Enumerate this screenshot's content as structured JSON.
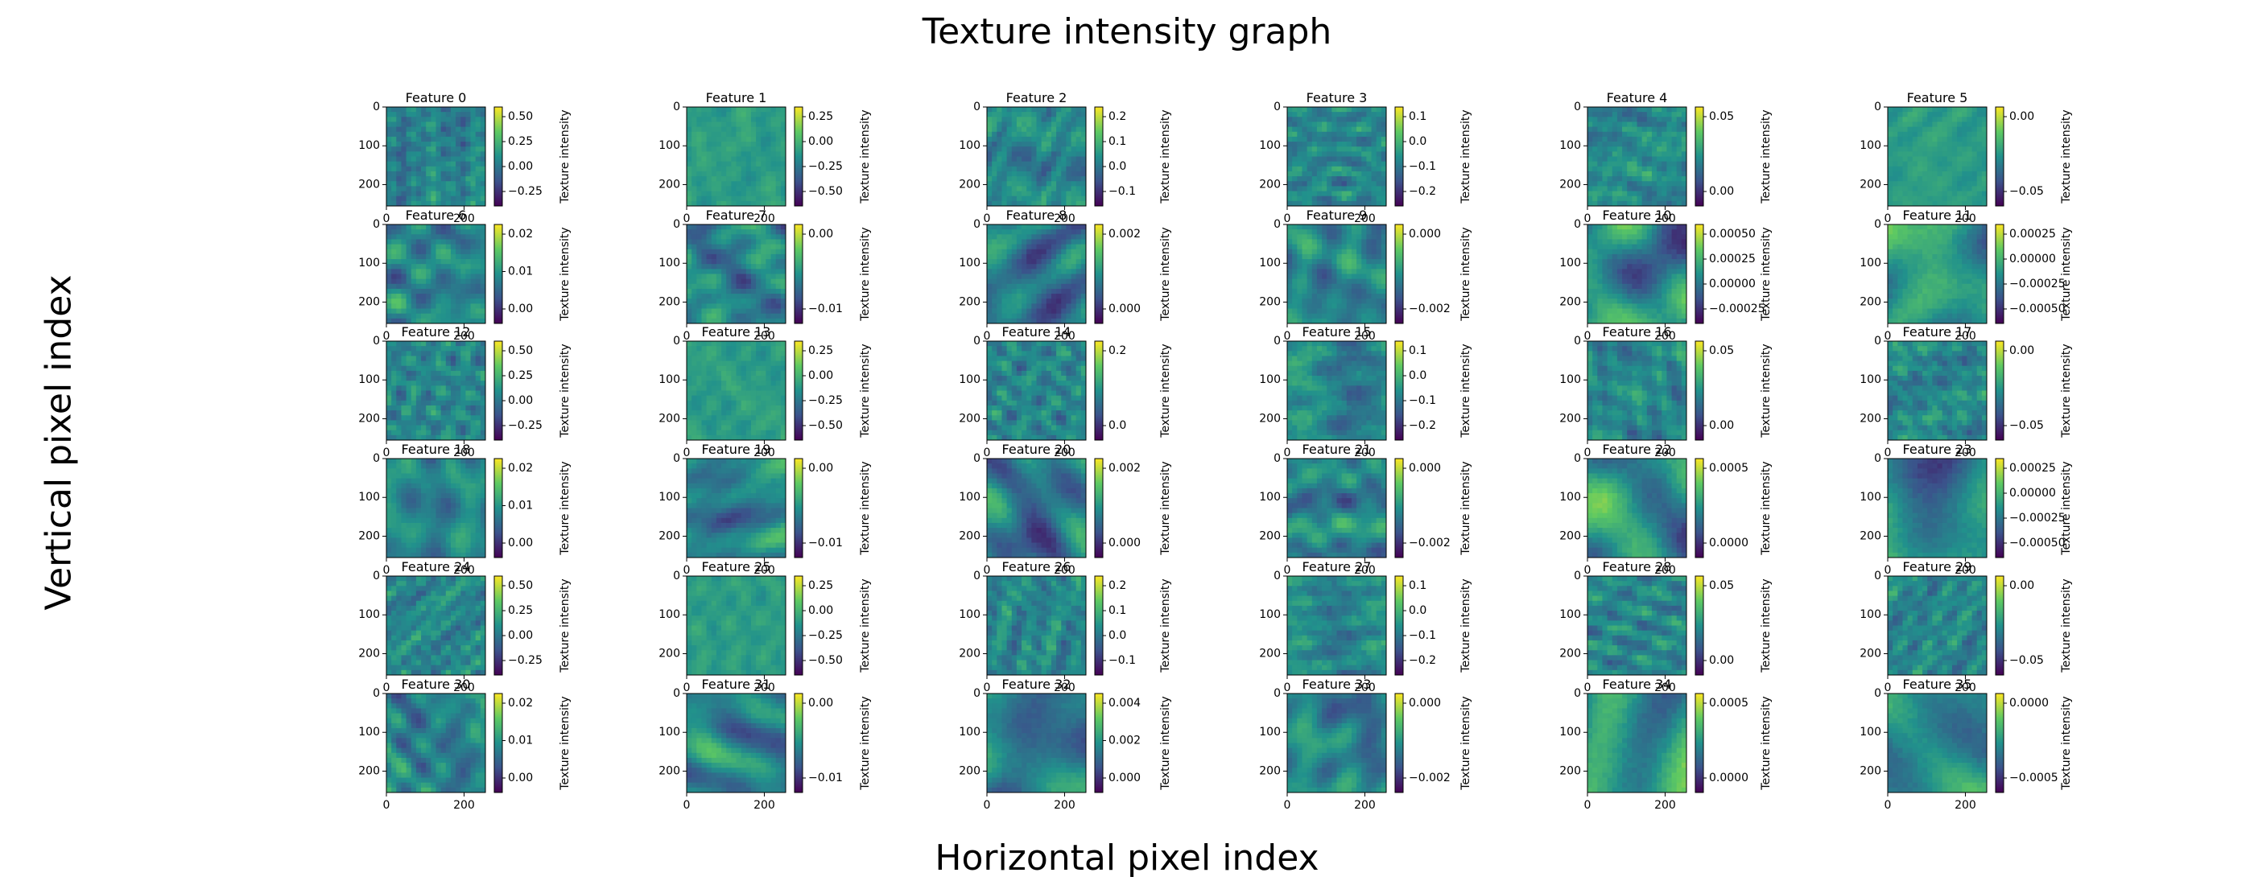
{
  "suptitle": "Texture intensity graph",
  "supxlabel": "Horizontal pixel index",
  "supylabel": "Vertical pixel index",
  "colorbar_label": "Texture intensity",
  "chart_data": {
    "type": "heatmap",
    "colormap": "viridis",
    "colormap_stops": [
      "#440154",
      "#3b528b",
      "#21918c",
      "#5ec962",
      "#fde725"
    ],
    "grid": "off",
    "layout": {
      "rows": 6,
      "cols": 6
    },
    "panel_xlim": [
      0,
      255
    ],
    "panel_ylim": [
      255,
      0
    ],
    "panel_xticks": [
      "0",
      "200"
    ],
    "panel_yticks": [
      "0",
      "100",
      "200"
    ],
    "panels": [
      {
        "title": "Feature 0",
        "cbar_ticks": [
          "0.50",
          "0.25",
          "0.00",
          "−0.25"
        ],
        "texture": "fine"
      },
      {
        "title": "Feature 1",
        "cbar_ticks": [
          "0.25",
          "0.00",
          "−0.25",
          "−0.50"
        ],
        "texture": "flat"
      },
      {
        "title": "Feature 2",
        "cbar_ticks": [
          "0.2",
          "0.1",
          "0.0",
          "−0.1"
        ],
        "texture": "fine"
      },
      {
        "title": "Feature 3",
        "cbar_ticks": [
          "0.1",
          "0.0",
          "−0.1",
          "−0.2"
        ],
        "texture": "fine"
      },
      {
        "title": "Feature 4",
        "cbar_ticks": [
          "0.05",
          "0.00"
        ],
        "texture": "fine"
      },
      {
        "title": "Feature 5",
        "cbar_ticks": [
          "0.00",
          "−0.05"
        ],
        "texture": "flat"
      },
      {
        "title": "Feature 6",
        "cbar_ticks": [
          "0.02",
          "0.01",
          "0.00"
        ],
        "texture": "medium"
      },
      {
        "title": "Feature 7",
        "cbar_ticks": [
          "0.00",
          "−0.01"
        ],
        "texture": "medium"
      },
      {
        "title": "Feature 8",
        "cbar_ticks": [
          "0.002",
          "0.000"
        ],
        "texture": "blobs"
      },
      {
        "title": "Feature 9",
        "cbar_ticks": [
          "0.000",
          "−0.002"
        ],
        "texture": "medium"
      },
      {
        "title": "Feature 10",
        "cbar_ticks": [
          "0.00050",
          "0.00025",
          "0.00000",
          "−0.00025"
        ],
        "texture": "large"
      },
      {
        "title": "Feature 11",
        "cbar_ticks": [
          "0.00025",
          "0.00000",
          "−0.00025",
          "−0.00050"
        ],
        "texture": "large"
      },
      {
        "title": "Feature 12",
        "cbar_ticks": [
          "0.50",
          "0.25",
          "0.00",
          "−0.25"
        ],
        "texture": "fine"
      },
      {
        "title": "Feature 13",
        "cbar_ticks": [
          "0.25",
          "0.00",
          "−0.25",
          "−0.50"
        ],
        "texture": "flat"
      },
      {
        "title": "Feature 14",
        "cbar_ticks": [
          "0.2",
          "0.0"
        ],
        "texture": "fine"
      },
      {
        "title": "Feature 15",
        "cbar_ticks": [
          "0.1",
          "0.0",
          "−0.1",
          "−0.2"
        ],
        "texture": "fine"
      },
      {
        "title": "Feature 16",
        "cbar_ticks": [
          "0.05",
          "0.00"
        ],
        "texture": "fine"
      },
      {
        "title": "Feature 17",
        "cbar_ticks": [
          "0.00",
          "−0.05"
        ],
        "texture": "fine"
      },
      {
        "title": "Feature 18",
        "cbar_ticks": [
          "0.02",
          "0.01",
          "0.00"
        ],
        "texture": "medium"
      },
      {
        "title": "Feature 19",
        "cbar_ticks": [
          "0.00",
          "−0.01"
        ],
        "texture": "medium"
      },
      {
        "title": "Feature 20",
        "cbar_ticks": [
          "0.002",
          "0.000"
        ],
        "texture": "blobs"
      },
      {
        "title": "Feature 21",
        "cbar_ticks": [
          "0.000",
          "−0.002"
        ],
        "texture": "medium"
      },
      {
        "title": "Feature 22",
        "cbar_ticks": [
          "0.0005",
          "0.0000"
        ],
        "texture": "large"
      },
      {
        "title": "Feature 23",
        "cbar_ticks": [
          "0.00025",
          "0.00000",
          "−0.00025",
          "−0.00050"
        ],
        "texture": "large"
      },
      {
        "title": "Feature 24",
        "cbar_ticks": [
          "0.50",
          "0.25",
          "0.00",
          "−0.25"
        ],
        "texture": "fine"
      },
      {
        "title": "Feature 25",
        "cbar_ticks": [
          "0.25",
          "0.00",
          "−0.25",
          "−0.50"
        ],
        "texture": "flat"
      },
      {
        "title": "Feature 26",
        "cbar_ticks": [
          "0.2",
          "0.1",
          "0.0",
          "−0.1"
        ],
        "texture": "fine"
      },
      {
        "title": "Feature 27",
        "cbar_ticks": [
          "0.1",
          "0.0",
          "−0.1",
          "−0.2"
        ],
        "texture": "fine"
      },
      {
        "title": "Feature 28",
        "cbar_ticks": [
          "0.05",
          "0.00"
        ],
        "texture": "fine"
      },
      {
        "title": "Feature 29",
        "cbar_ticks": [
          "0.00",
          "−0.05"
        ],
        "texture": "fine"
      },
      {
        "title": "Feature 30",
        "cbar_ticks": [
          "0.02",
          "0.01",
          "0.00"
        ],
        "texture": "medium"
      },
      {
        "title": "Feature 31",
        "cbar_ticks": [
          "0.00",
          "−0.01"
        ],
        "texture": "medium"
      },
      {
        "title": "Feature 32",
        "cbar_ticks": [
          "0.004",
          "0.002",
          "0.000"
        ],
        "texture": "blobs"
      },
      {
        "title": "Feature 33",
        "cbar_ticks": [
          "0.000",
          "−0.002"
        ],
        "texture": "medium"
      },
      {
        "title": "Feature 34",
        "cbar_ticks": [
          "0.0005",
          "0.0000"
        ],
        "texture": "large"
      },
      {
        "title": "Feature 35",
        "cbar_ticks": [
          "0.0000",
          "−0.0005"
        ],
        "texture": "large"
      }
    ]
  }
}
